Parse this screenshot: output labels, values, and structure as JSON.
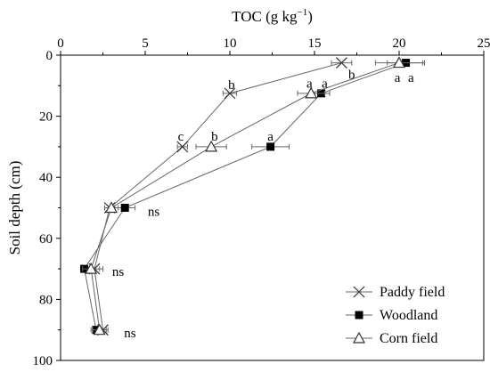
{
  "chart_data": {
    "type": "line",
    "orientation": "vertical-profile",
    "title": "",
    "xlabel": "TOC (g kg⁻¹)",
    "ylabel": "Soil depth (cm)",
    "x_axis_position": "top",
    "y_axis_inverted": true,
    "xlim": [
      0,
      25
    ],
    "ylim": [
      0,
      100
    ],
    "xticks": [
      0,
      5,
      10,
      15,
      20,
      25
    ],
    "yticks": [
      0,
      20,
      40,
      60,
      80,
      100
    ],
    "legend": {
      "placement": "bottom-right"
    },
    "series": [
      {
        "name": "Paddy field",
        "marker": "x",
        "points": [
          {
            "x": 16.6,
            "y": 2.5,
            "err": 0.6
          },
          {
            "x": 10.0,
            "y": 12.5,
            "err": 0.4
          },
          {
            "x": 7.2,
            "y": 30,
            "err": 0.3
          },
          {
            "x": 2.9,
            "y": 50,
            "err": 0.3
          },
          {
            "x": 2.0,
            "y": 70,
            "err": 0.5
          },
          {
            "x": 2.5,
            "y": 90,
            "err": 0.3
          }
        ]
      },
      {
        "name": "Woodland",
        "marker": "filled-square",
        "points": [
          {
            "x": 20.4,
            "y": 2.5,
            "err": 1.1
          },
          {
            "x": 15.4,
            "y": 12.5,
            "err": 0.5
          },
          {
            "x": 12.4,
            "y": 30,
            "err": 1.1
          },
          {
            "x": 3.8,
            "y": 50,
            "err": 0.6
          },
          {
            "x": 1.4,
            "y": 70,
            "err": 0.2
          },
          {
            "x": 2.1,
            "y": 90,
            "err": 0.3
          }
        ]
      },
      {
        "name": "Corn field",
        "marker": "open-triangle",
        "points": [
          {
            "x": 20.0,
            "y": 2.5,
            "err": 1.4
          },
          {
            "x": 14.8,
            "y": 12.5,
            "err": 0.8
          },
          {
            "x": 8.9,
            "y": 30,
            "err": 0.9
          },
          {
            "x": 3.0,
            "y": 50,
            "err": 0.4
          },
          {
            "x": 1.8,
            "y": 70,
            "err": 0.5
          },
          {
            "x": 2.3,
            "y": 90,
            "err": 0.4
          }
        ]
      }
    ],
    "annotations": [
      {
        "text": "b",
        "x": 17.2,
        "y": 6.3
      },
      {
        "text": "a",
        "x": 19.9,
        "y": 7.3
      },
      {
        "text": "a",
        "x": 20.7,
        "y": 7.3
      },
      {
        "text": "b",
        "x": 10.1,
        "y": 9.6
      },
      {
        "text": "a",
        "x": 14.7,
        "y": 9.2
      },
      {
        "text": "a",
        "x": 15.6,
        "y": 9.2
      },
      {
        "text": "c",
        "x": 7.1,
        "y": 26.6
      },
      {
        "text": "b",
        "x": 9.1,
        "y": 26.6
      },
      {
        "text": "a",
        "x": 12.4,
        "y": 26.6
      },
      {
        "text": "ns",
        "x": 5.5,
        "y": 51.2
      },
      {
        "text": "ns",
        "x": 3.4,
        "y": 70.9
      },
      {
        "text": "ns",
        "x": 4.1,
        "y": 90.9
      }
    ]
  }
}
